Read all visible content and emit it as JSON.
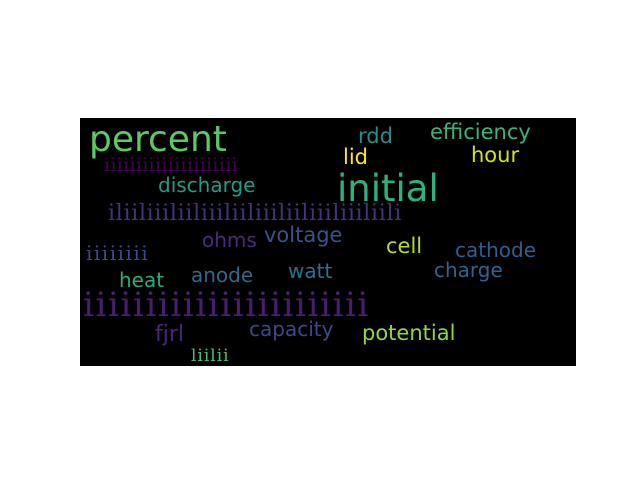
{
  "word_cloud": {
    "background": "#000000",
    "words": [
      {
        "text": "percent",
        "color": "#5ec962"
      },
      {
        "text": "rdd",
        "color": "#21918c"
      },
      {
        "text": "efficiency",
        "color": "#35b779"
      },
      {
        "text": "iiiiiiiiiiiiiiiiiiiii",
        "color": "#440154"
      },
      {
        "text": "lid",
        "color": "#fde725"
      },
      {
        "text": "hour",
        "color": "#d2e21b"
      },
      {
        "text": "discharge",
        "color": "#1f9e89"
      },
      {
        "text": "initial",
        "color": "#2db27d"
      },
      {
        "text": "iliiliiiliiliiiliiliiiliiliiiliiiliili",
        "color": "#46327e"
      },
      {
        "text": "ohms",
        "color": "#472d7b"
      },
      {
        "text": "voltage",
        "color": "#3b528b"
      },
      {
        "text": "cell",
        "color": "#b5de2b"
      },
      {
        "text": "cathode",
        "color": "#365c8d"
      },
      {
        "text": "iiiiiiii",
        "color": "#3e4a89"
      },
      {
        "text": "heat",
        "color": "#26ad81"
      },
      {
        "text": "anode",
        "color": "#31688e"
      },
      {
        "text": "watt",
        "color": "#2c728e"
      },
      {
        "text": "charge",
        "color": "#33638d"
      },
      {
        "text": "iiiiiiiiiiiiiiiiiiiiiii",
        "color": "#481f70"
      },
      {
        "text": "fjrl",
        "color": "#482878"
      },
      {
        "text": "capacity",
        "color": "#3e4989"
      },
      {
        "text": "potential",
        "color": "#8fd744"
      },
      {
        "text": "liilii",
        "color": "#4ac16d"
      }
    ]
  }
}
